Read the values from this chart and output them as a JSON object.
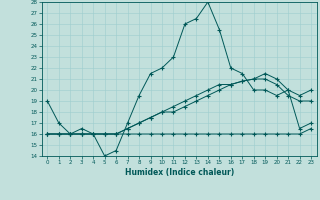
{
  "xlabel": "Humidex (Indice chaleur)",
  "xlim": [
    -0.5,
    23.5
  ],
  "ylim": [
    14,
    28
  ],
  "xticks": [
    0,
    1,
    2,
    3,
    4,
    5,
    6,
    7,
    8,
    9,
    10,
    11,
    12,
    13,
    14,
    15,
    16,
    17,
    18,
    19,
    20,
    21,
    22,
    23
  ],
  "yticks": [
    14,
    15,
    16,
    17,
    18,
    19,
    20,
    21,
    22,
    23,
    24,
    25,
    26,
    27,
    28
  ],
  "bg_color": "#c2e0dc",
  "grid_color": "#9ecece",
  "line_color": "#005858",
  "lines": [
    {
      "x": [
        0,
        1,
        2,
        3,
        4,
        5,
        6,
        7,
        8,
        9,
        10,
        11,
        12,
        13,
        14,
        15,
        16,
        17,
        18,
        19,
        20,
        21,
        22,
        23
      ],
      "y": [
        19,
        17,
        16,
        16.5,
        16,
        14,
        14.5,
        17,
        19.5,
        21.5,
        22,
        23,
        26,
        26.5,
        28,
        25.5,
        22,
        21.5,
        20,
        20,
        19.5,
        20,
        16.5,
        17
      ]
    },
    {
      "x": [
        0,
        1,
        2,
        3,
        4,
        5,
        6,
        7,
        8,
        9,
        10,
        11,
        12,
        13,
        14,
        15,
        16,
        17,
        18,
        19,
        20,
        21,
        22,
        23
      ],
      "y": [
        16,
        16,
        16,
        16,
        16,
        16,
        16,
        16,
        16,
        16,
        16,
        16,
        16,
        16,
        16,
        16,
        16,
        16,
        16,
        16,
        16,
        16,
        16,
        16.5
      ]
    },
    {
      "x": [
        0,
        1,
        2,
        3,
        4,
        5,
        6,
        7,
        8,
        9,
        10,
        11,
        12,
        13,
        14,
        15,
        16,
        17,
        18,
        19,
        20,
        21,
        22,
        23
      ],
      "y": [
        16,
        16,
        16,
        16,
        16,
        16,
        16,
        16.5,
        17,
        17.5,
        18,
        18.5,
        19,
        19.5,
        20,
        20.5,
        20.5,
        20.8,
        21,
        21,
        20.5,
        19.5,
        19,
        19
      ]
    },
    {
      "x": [
        0,
        1,
        2,
        3,
        4,
        5,
        6,
        7,
        8,
        9,
        10,
        11,
        12,
        13,
        14,
        15,
        16,
        17,
        18,
        19,
        20,
        21,
        22,
        23
      ],
      "y": [
        16,
        16,
        16,
        16,
        16,
        16,
        16,
        16.5,
        17,
        17.5,
        18,
        18,
        18.5,
        19,
        19.5,
        20,
        20.5,
        20.8,
        21,
        21.5,
        21,
        20,
        19.5,
        20
      ]
    }
  ]
}
